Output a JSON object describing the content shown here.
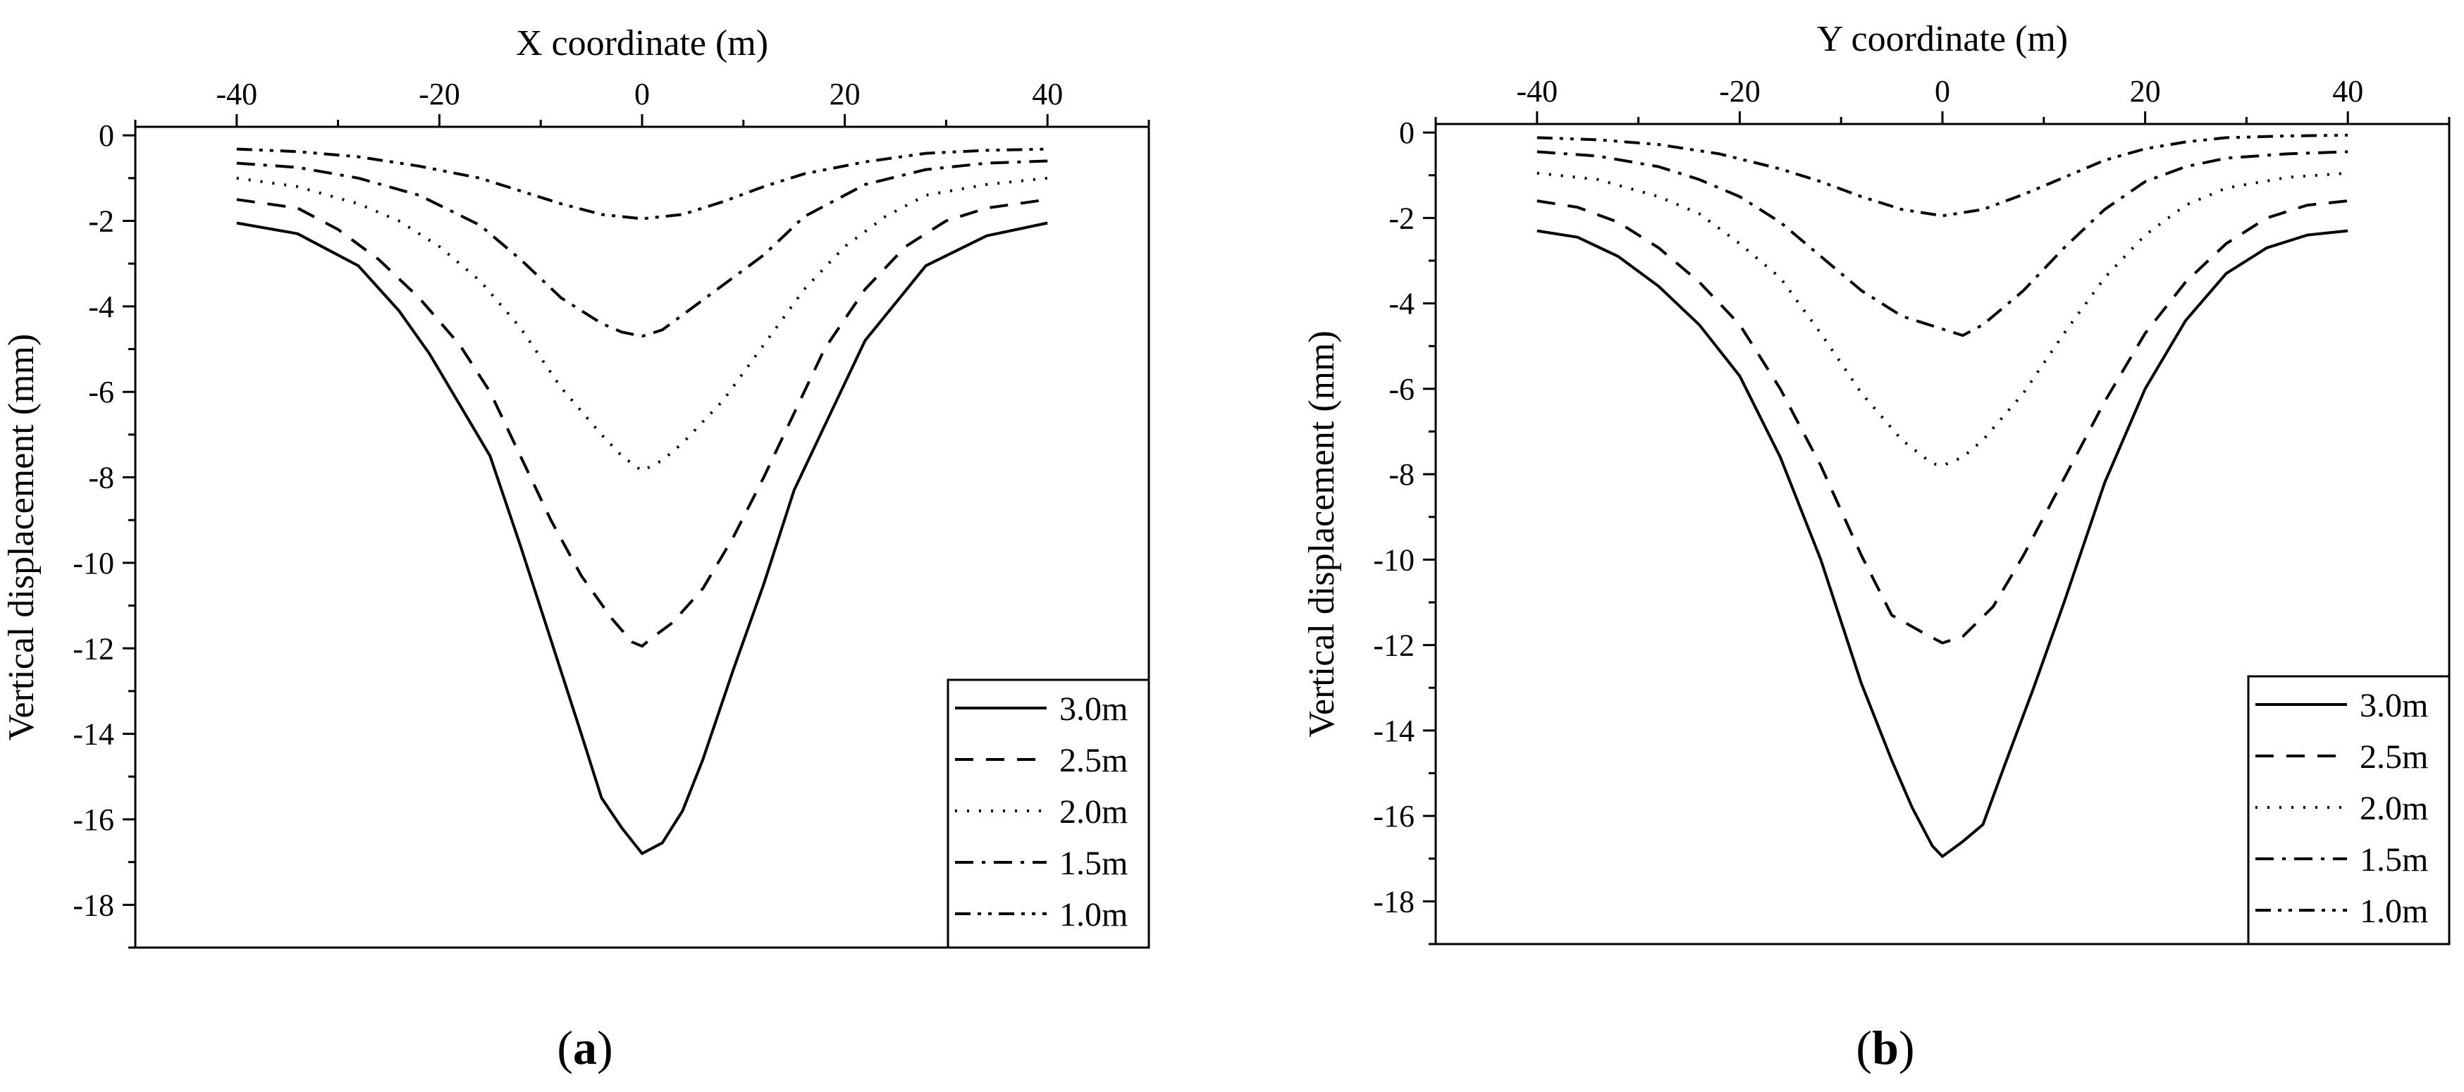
{
  "chart_data": [
    {
      "type": "line",
      "panel_label_open": "(",
      "panel_label_letter": "a",
      "panel_label_close": ")",
      "xlabel": "X coordinate (m)",
      "ylabel": "Vertical displacement (mm)",
      "xlim": [
        -50,
        50
      ],
      "ylim": [
        -19,
        0.2
      ],
      "xticks": [
        -40,
        -20,
        0,
        20,
        40
      ],
      "yticks": [
        0,
        -2,
        -4,
        -6,
        -8,
        -10,
        -12,
        -14,
        -16,
        -18
      ],
      "legend_position": "bottom-right",
      "series": [
        {
          "name": "3.0m",
          "dash": "solid",
          "x": [
            -40,
            -34,
            -28,
            -24,
            -21,
            -18,
            -15,
            -12,
            -9,
            -6,
            -4,
            -2,
            0,
            2,
            4,
            6,
            9,
            12,
            15,
            18,
            22,
            28,
            34,
            40
          ],
          "y": [
            -2.05,
            -2.3,
            -3.05,
            -4.1,
            -5.1,
            -6.3,
            -7.5,
            -9.6,
            -11.8,
            -14.0,
            -15.5,
            -16.2,
            -16.8,
            -16.55,
            -15.8,
            -14.6,
            -12.5,
            -10.5,
            -8.3,
            -6.8,
            -4.8,
            -3.05,
            -2.35,
            -2.05
          ]
        },
        {
          "name": "2.5m",
          "dash": "dash",
          "x": [
            -40,
            -34,
            -30,
            -26,
            -22,
            -18,
            -15,
            -12,
            -9,
            -6,
            -3,
            -1,
            0,
            1,
            3,
            6,
            9,
            12,
            15,
            18,
            22,
            26,
            30,
            34,
            40
          ],
          "y": [
            -1.5,
            -1.7,
            -2.2,
            -2.9,
            -3.8,
            -4.9,
            -6.0,
            -7.5,
            -9.0,
            -10.3,
            -11.3,
            -11.85,
            -11.95,
            -11.75,
            -11.4,
            -10.6,
            -9.4,
            -8.0,
            -6.5,
            -5.0,
            -3.6,
            -2.6,
            -2.0,
            -1.7,
            -1.5
          ]
        },
        {
          "name": "2.0m",
          "dash": "dot",
          "x": [
            -40,
            -34,
            -28,
            -24,
            -20,
            -16,
            -12,
            -8,
            -4,
            -2,
            0,
            2,
            4,
            8,
            12,
            16,
            20,
            24,
            28,
            34,
            40
          ],
          "y": [
            -1.0,
            -1.2,
            -1.6,
            -2.0,
            -2.6,
            -3.4,
            -4.5,
            -5.9,
            -7.0,
            -7.5,
            -7.85,
            -7.6,
            -7.2,
            -6.2,
            -4.9,
            -3.6,
            -2.6,
            -1.9,
            -1.4,
            -1.15,
            -1.0
          ]
        },
        {
          "name": "1.5m",
          "dash": "dashdot",
          "x": [
            -40,
            -34,
            -28,
            -22,
            -16,
            -12,
            -8,
            -4,
            -2,
            0,
            2,
            4,
            8,
            12,
            16,
            22,
            28,
            34,
            40
          ],
          "y": [
            -0.65,
            -0.75,
            -1.0,
            -1.4,
            -2.1,
            -2.9,
            -3.8,
            -4.4,
            -4.6,
            -4.7,
            -4.55,
            -4.2,
            -3.5,
            -2.8,
            -1.9,
            -1.15,
            -0.8,
            -0.65,
            -0.6
          ]
        },
        {
          "name": "1.0m",
          "dash": "dashdotdot",
          "x": [
            -40,
            -34,
            -28,
            -22,
            -16,
            -12,
            -8,
            -4,
            0,
            4,
            8,
            12,
            16,
            22,
            28,
            34,
            40
          ],
          "y": [
            -0.32,
            -0.38,
            -0.5,
            -0.72,
            -1.0,
            -1.3,
            -1.6,
            -1.85,
            -1.95,
            -1.85,
            -1.55,
            -1.2,
            -0.9,
            -0.62,
            -0.42,
            -0.35,
            -0.32
          ]
        }
      ]
    },
    {
      "type": "line",
      "panel_label_open": "(",
      "panel_label_letter": "b",
      "panel_label_close": ")",
      "xlabel": "Y coordinate (m)",
      "ylabel": "Vertical displacement (mm)",
      "xlim": [
        -50,
        50
      ],
      "ylim": [
        -19,
        0.2
      ],
      "xticks": [
        -40,
        -20,
        0,
        20,
        40
      ],
      "yticks": [
        0,
        -2,
        -4,
        -6,
        -8,
        -10,
        -12,
        -14,
        -16,
        -18
      ],
      "legend_position": "bottom-right",
      "series": [
        {
          "name": "3.0m",
          "dash": "solid",
          "x": [
            -40,
            -36,
            -32,
            -28,
            -24,
            -20,
            -16,
            -12,
            -8,
            -5,
            -3,
            -1,
            0,
            2,
            4,
            6,
            9,
            12,
            16,
            20,
            24,
            28,
            32,
            36,
            40
          ],
          "y": [
            -2.3,
            -2.45,
            -2.9,
            -3.6,
            -4.5,
            -5.7,
            -7.6,
            -10.0,
            -12.9,
            -14.7,
            -15.8,
            -16.7,
            -16.95,
            -16.6,
            -16.2,
            -14.9,
            -13.0,
            -11.0,
            -8.2,
            -6.0,
            -4.4,
            -3.3,
            -2.7,
            -2.4,
            -2.3
          ]
        },
        {
          "name": "2.5m",
          "dash": "dash",
          "x": [
            -40,
            -36,
            -32,
            -28,
            -24,
            -20,
            -16,
            -12,
            -8,
            -5,
            -2,
            0,
            2,
            5,
            8,
            12,
            16,
            20,
            24,
            28,
            32,
            36,
            40
          ],
          "y": [
            -1.6,
            -1.75,
            -2.1,
            -2.7,
            -3.5,
            -4.5,
            -6.0,
            -7.8,
            -9.9,
            -11.3,
            -11.7,
            -11.95,
            -11.8,
            -11.1,
            -9.9,
            -8.1,
            -6.3,
            -4.7,
            -3.5,
            -2.6,
            -2.0,
            -1.7,
            -1.6
          ]
        },
        {
          "name": "2.0m",
          "dash": "dot",
          "x": [
            -40,
            -34,
            -28,
            -24,
            -20,
            -16,
            -12,
            -8,
            -4,
            -1,
            0,
            2,
            4,
            8,
            12,
            16,
            20,
            24,
            28,
            34,
            40
          ],
          "y": [
            -0.95,
            -1.1,
            -1.5,
            -1.9,
            -2.6,
            -3.4,
            -4.7,
            -6.1,
            -7.2,
            -7.75,
            -7.8,
            -7.6,
            -7.2,
            -6.1,
            -4.7,
            -3.4,
            -2.4,
            -1.7,
            -1.3,
            -1.05,
            -0.95
          ]
        },
        {
          "name": "1.5m",
          "dash": "dashdot",
          "x": [
            -40,
            -34,
            -28,
            -24,
            -20,
            -16,
            -12,
            -8,
            -4,
            0,
            2,
            4,
            8,
            12,
            16,
            20,
            24,
            28,
            34,
            40
          ],
          "y": [
            -0.45,
            -0.55,
            -0.8,
            -1.1,
            -1.5,
            -2.1,
            -2.9,
            -3.7,
            -4.3,
            -4.6,
            -4.75,
            -4.5,
            -3.7,
            -2.7,
            -1.8,
            -1.15,
            -0.8,
            -0.6,
            -0.5,
            -0.45
          ]
        },
        {
          "name": "1.0m",
          "dash": "dashdotdot",
          "x": [
            -40,
            -34,
            -28,
            -22,
            -16,
            -12,
            -8,
            -4,
            0,
            4,
            8,
            12,
            16,
            20,
            24,
            28,
            34,
            40
          ],
          "y": [
            -0.12,
            -0.17,
            -0.28,
            -0.5,
            -0.85,
            -1.15,
            -1.5,
            -1.8,
            -1.95,
            -1.8,
            -1.45,
            -1.05,
            -0.65,
            -0.38,
            -0.22,
            -0.12,
            -0.08,
            -0.06
          ]
        }
      ]
    }
  ]
}
